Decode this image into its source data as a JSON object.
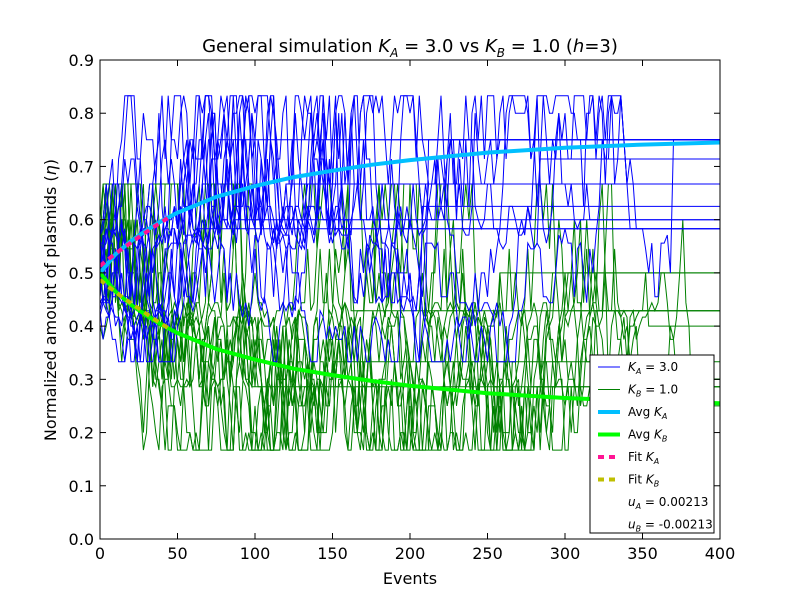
{
  "chart_data": {
    "type": "line",
    "title": "General simulation K_A = 3.0 vs K_B = 1.0 (h=3)",
    "title_parts": {
      "prefix": "General simulation ",
      "ka_symbol": "K",
      "ka_sub": "A",
      "ka_value": " = 3.0 vs ",
      "kb_symbol": "K",
      "kb_sub": "B",
      "kb_value": " = 1.0 (",
      "h_symbol": "h",
      "h_value": "=3)"
    },
    "xlabel": "Events",
    "ylabel": "Normalized amount of plasmids (η)",
    "ylabel_parts": {
      "text": "Normalized amount of plasmids (",
      "symbol": "η",
      "close": ")"
    },
    "xlim": [
      0,
      400
    ],
    "ylim": [
      0.0,
      0.9
    ],
    "xticks": [
      0,
      50,
      100,
      150,
      200,
      250,
      300,
      350,
      400
    ],
    "xtick_labels": [
      "0",
      "50",
      "100",
      "150",
      "200",
      "250",
      "300",
      "350",
      "400"
    ],
    "yticks": [
      0.0,
      0.1,
      0.2,
      0.3,
      0.4,
      0.5,
      0.6,
      0.7,
      0.8,
      0.9
    ],
    "ytick_labels": [
      "0.0",
      "0.1",
      "0.2",
      "0.3",
      "0.4",
      "0.5",
      "0.6",
      "0.7",
      "0.8",
      "0.9"
    ],
    "grid": false,
    "legend_position": "lower-right",
    "legend": [
      {
        "symbol": "K",
        "sub": "A",
        "suffix": " = 3.0",
        "color": "#0000ff",
        "style": "thin"
      },
      {
        "symbol": "K",
        "sub": "B",
        "suffix": " = 1.0",
        "color": "#008000",
        "style": "thin"
      },
      {
        "prefix": "Avg ",
        "symbol": "K",
        "sub": "A",
        "color": "#00bfff",
        "style": "thick"
      },
      {
        "prefix": "Avg ",
        "symbol": "K",
        "sub": "B",
        "color": "#00ff00",
        "style": "thick"
      },
      {
        "prefix": "Fit ",
        "symbol": "K",
        "sub": "A",
        "color": "#ff1493",
        "style": "dashed"
      },
      {
        "prefix": "Fit ",
        "symbol": "K",
        "sub": "B",
        "color": "#bfbf00",
        "style": "dashed"
      },
      {
        "symbol": "u",
        "sub": "A",
        "suffix": " = 0.00213",
        "color": "none",
        "style": "none"
      },
      {
        "symbol": "u",
        "sub": "B",
        "suffix": " = -0.00213",
        "color": "none",
        "style": "none"
      }
    ],
    "colors": {
      "sim_a": "#0000ff",
      "sim_b": "#008000",
      "avg_a": "#00bfff",
      "avg_b": "#00ff00",
      "fit_a": "#ff1493",
      "fit_b": "#bfbf00"
    },
    "series": [
      {
        "name": "Avg K_A",
        "x": [
          0,
          10,
          20,
          30,
          40,
          50,
          75,
          100,
          125,
          150,
          175,
          200,
          250,
          300,
          350,
          400
        ],
        "values": [
          0.5,
          0.535,
          0.56,
          0.58,
          0.598,
          0.613,
          0.643,
          0.663,
          0.68,
          0.692,
          0.703,
          0.712,
          0.726,
          0.735,
          0.741,
          0.745
        ]
      },
      {
        "name": "Avg K_B",
        "x": [
          0,
          10,
          20,
          30,
          40,
          50,
          75,
          100,
          125,
          150,
          175,
          200,
          250,
          300,
          350,
          400
        ],
        "values": [
          0.5,
          0.465,
          0.44,
          0.42,
          0.402,
          0.387,
          0.357,
          0.337,
          0.32,
          0.308,
          0.297,
          0.288,
          0.274,
          0.265,
          0.259,
          0.255
        ]
      },
      {
        "name": "Fit K_A",
        "x": [
          0,
          5,
          10,
          15,
          20,
          25,
          30,
          35,
          40,
          45
        ],
        "values": [
          0.513,
          0.525,
          0.536,
          0.547,
          0.557,
          0.567,
          0.577,
          0.587,
          0.596,
          0.606
        ]
      },
      {
        "name": "Fit K_B",
        "x": [
          0,
          5,
          10,
          15,
          20,
          25,
          30,
          35,
          40,
          45
        ],
        "values": [
          0.487,
          0.475,
          0.464,
          0.453,
          0.443,
          0.433,
          0.423,
          0.413,
          0.404,
          0.394
        ]
      }
    ],
    "simulation_runs": {
      "count_per_group": 14,
      "a_levels": [
        0.333,
        0.375,
        0.4,
        0.417,
        0.429,
        0.444,
        0.455,
        0.5,
        0.545,
        0.556,
        0.571,
        0.583,
        0.6,
        0.625,
        0.667,
        0.714,
        0.75,
        0.8,
        0.833
      ],
      "b_levels": [
        0.167,
        0.2,
        0.25,
        0.286,
        0.3,
        0.333,
        0.375,
        0.4,
        0.417,
        0.429,
        0.444,
        0.5,
        0.545,
        0.6,
        0.667
      ],
      "a_range": [
        0.333,
        0.833
      ],
      "b_range": [
        0.167,
        0.667
      ]
    }
  }
}
